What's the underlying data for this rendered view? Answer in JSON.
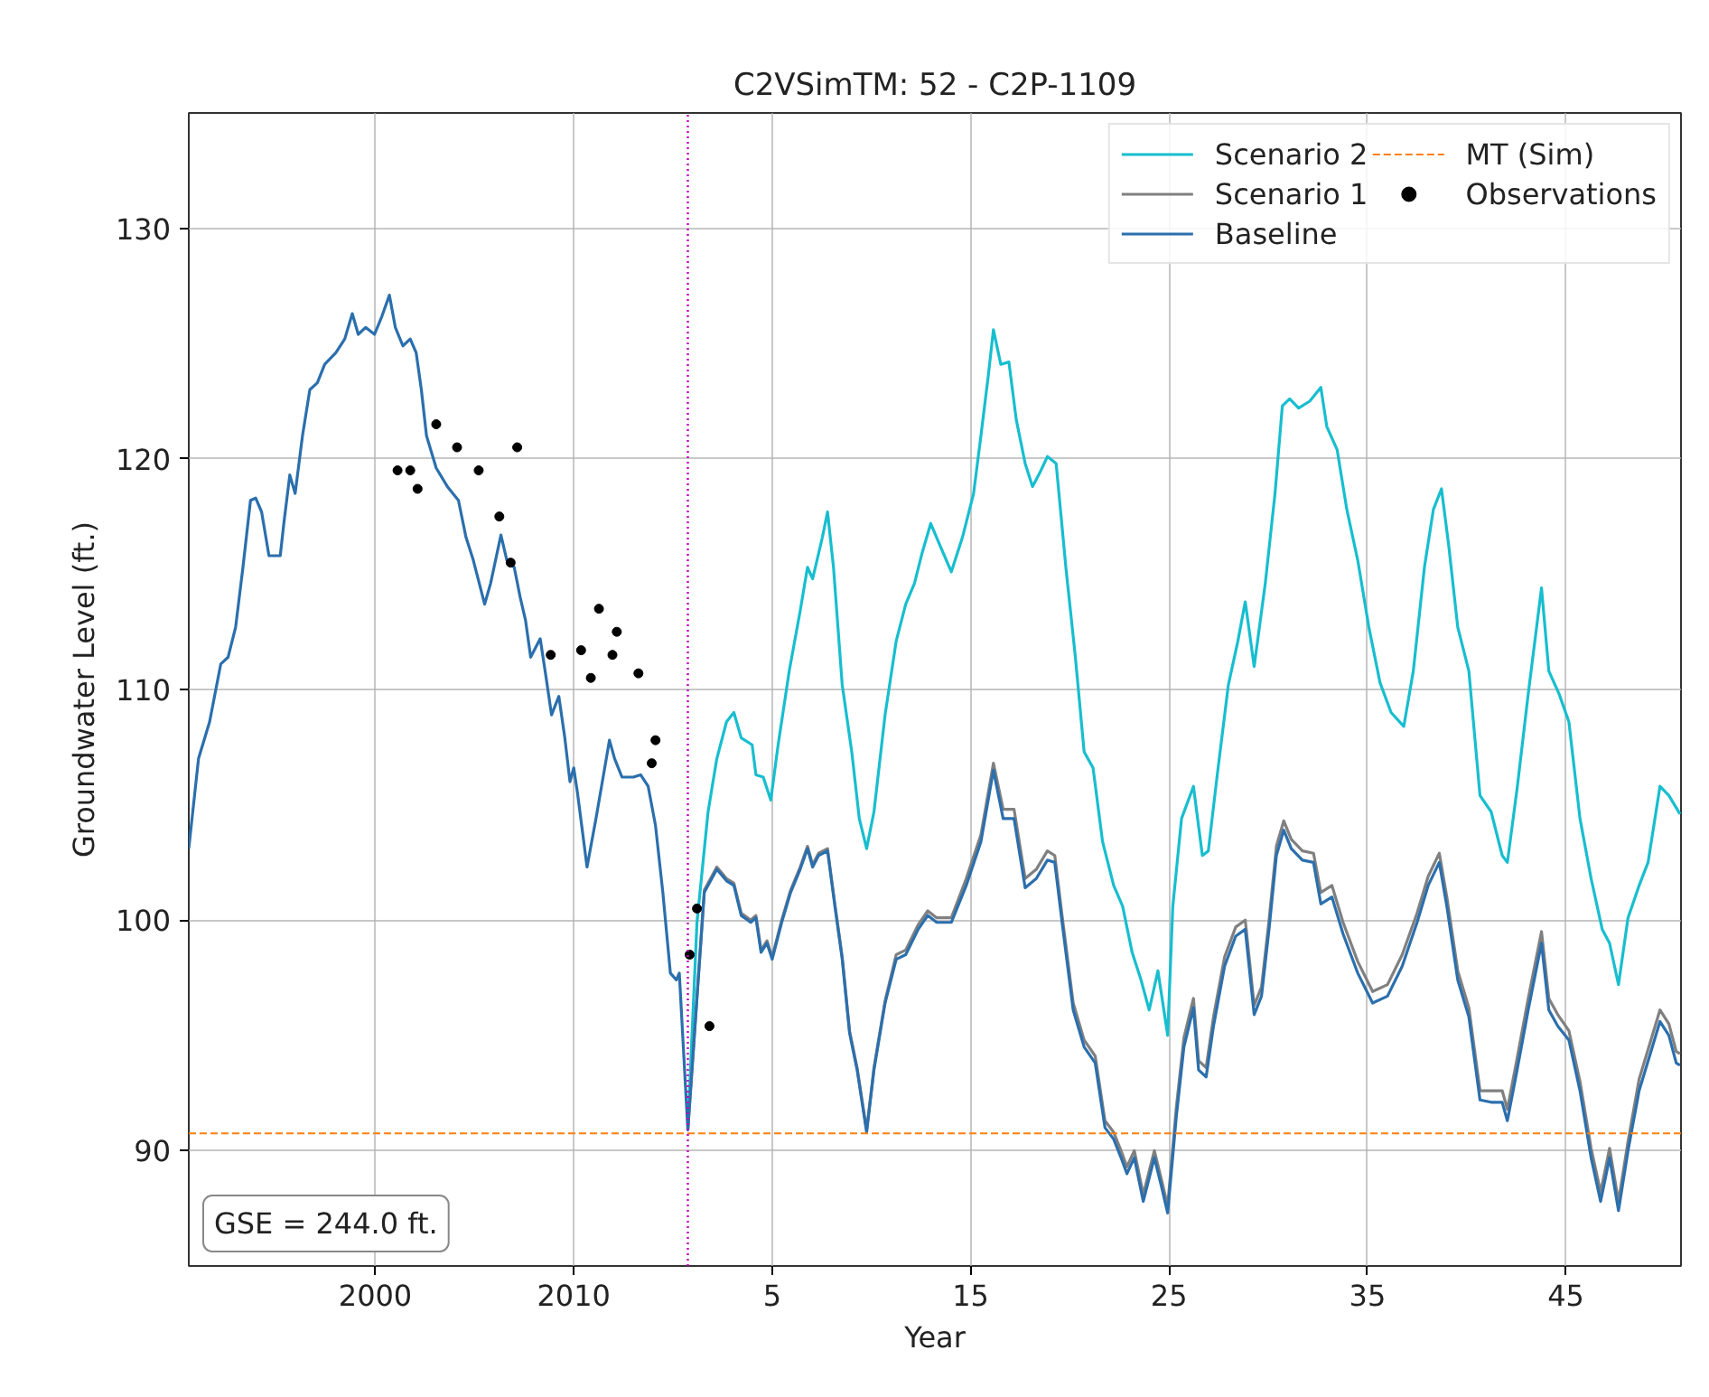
{
  "chart_data": {
    "type": "line",
    "title": "C2VSimTM: 52 - C2P-1109",
    "xlabel": "Year",
    "ylabel": "Groundwater Level (ft.)",
    "annotations": [
      "GSE = 244.0 ft."
    ],
    "xlim": [
      1990.6,
      2065.8
    ],
    "xticks": [
      2000,
      2010
    ],
    "x2lim": [
      -24.4,
      50.8
    ],
    "x2ticks": [
      5,
      15,
      25,
      35,
      45
    ],
    "ylim": [
      85,
      135
    ],
    "yticks": [
      90,
      100,
      110,
      120,
      130
    ],
    "grid": true,
    "legend": "top right",
    "ref_lines": [
      {
        "axis": "y",
        "value": 90.75,
        "label": "MT (Sim)",
        "color": "#ff7f0e",
        "line_style": "dashed"
      },
      {
        "axis": "x",
        "value": 2015.75,
        "color": "#bf00bf",
        "line_style": "dotted"
      }
    ],
    "series": [
      {
        "name": "Scenario 2",
        "color": "#17becf",
        "x": [
          2015.75,
          2016.21,
          2016.77,
          2017.21,
          2017.7,
          2018.07,
          2018.44,
          2018.99,
          2019.18,
          2019.55,
          2019.93,
          2020.3,
          2020.86,
          2021.41,
          2021.78,
          2022.04,
          2022.53,
          2022.79,
          2023.09,
          2023.53,
          2024.01,
          2024.39,
          2024.76,
          2025.13,
          2025.69,
          2026.25,
          2026.73,
          2027.17,
          2027.55,
          2027.99,
          2028.48,
          2029.03,
          2029.59,
          2030.15,
          2030.52,
          2030.89,
          2031.15,
          2031.52,
          2031.93,
          2032.3,
          2032.75,
          2033.12,
          2033.49,
          2033.87,
          2034.31,
          2034.8,
          2035.28,
          2035.72,
          2036.17,
          2036.65,
          2037.21,
          2037.66,
          2038.14,
          2038.59,
          2039.0,
          2039.44,
          2039.93,
          2040.19,
          2040.63,
          2041.23,
          2041.68,
          2041.98,
          2042.43,
          2042.99,
          2043.47,
          2043.84,
          2044.29,
          2044.85,
          2045.34,
          2045.71,
          2046.08,
          2046.53,
          2047.09,
          2047.65,
          2047.95,
          2048.47,
          2048.96,
          2049.51,
          2050.07,
          2050.63,
          2051.19,
          2051.83,
          2052.31,
          2052.87,
          2053.32,
          2053.73,
          2054.1,
          2054.55,
          2055.11,
          2055.67,
          2056.23,
          2056.79,
          2057.05,
          2057.54,
          2058.1,
          2058.77,
          2059.14,
          2059.66,
          2060.15,
          2060.71,
          2061.27,
          2061.83,
          2062.2,
          2062.65,
          2063.13,
          2063.69,
          2064.14,
          2064.74,
          2065.19,
          2065.75
        ],
        "values": [
          90.9,
          99.9,
          104.7,
          107.0,
          108.6,
          109.0,
          107.9,
          107.6,
          106.3,
          106.2,
          105.2,
          107.6,
          110.8,
          113.4,
          115.3,
          114.8,
          116.6,
          117.7,
          115.3,
          110.2,
          107.3,
          104.4,
          103.1,
          104.7,
          108.9,
          112.1,
          113.7,
          114.6,
          115.9,
          117.2,
          116.2,
          115.1,
          116.6,
          118.5,
          121.0,
          123.6,
          125.6,
          124.1,
          124.2,
          121.7,
          119.8,
          118.8,
          119.4,
          120.1,
          119.8,
          115.3,
          111.4,
          107.3,
          106.6,
          103.4,
          101.5,
          100.6,
          98.6,
          97.4,
          96.1,
          97.8,
          95.0,
          100.6,
          104.4,
          105.8,
          102.8,
          103.0,
          106.3,
          110.2,
          112.1,
          113.8,
          111.0,
          114.6,
          118.5,
          122.3,
          122.6,
          122.2,
          122.5,
          123.1,
          121.4,
          120.4,
          117.8,
          115.6,
          112.7,
          110.3,
          109.0,
          108.4,
          110.8,
          115.3,
          117.8,
          118.7,
          116.2,
          112.7,
          110.8,
          105.4,
          104.7,
          102.8,
          102.5,
          105.7,
          109.8,
          114.4,
          110.8,
          109.8,
          108.6,
          104.4,
          101.8,
          99.6,
          99.0,
          97.2,
          100.1,
          101.5,
          102.5,
          105.8,
          105.4,
          104.6
        ]
      },
      {
        "name": "Scenario 1",
        "color": "#808080",
        "x": [
          2015.75,
          2016.58,
          2017.21,
          2017.7,
          2018.07,
          2018.44,
          2018.92,
          2019.18,
          2019.44,
          2019.74,
          2020.0,
          2020.48,
          2020.93,
          2021.41,
          2021.78,
          2022.04,
          2022.34,
          2022.79,
          2023.16,
          2023.53,
          2023.9,
          2024.28,
          2024.76,
          2025.13,
          2025.69,
          2026.25,
          2026.73,
          2027.36,
          2027.84,
          2028.29,
          2029.03,
          2029.78,
          2030.52,
          2031.15,
          2031.64,
          2032.19,
          2032.75,
          2033.31,
          2033.87,
          2034.24,
          2034.61,
          2035.17,
          2035.72,
          2036.28,
          2036.77,
          2037.21,
          2037.58,
          2037.88,
          2038.25,
          2038.7,
          2039.26,
          2039.63,
          2039.93,
          2040.37,
          2040.75,
          2041.23,
          2041.49,
          2041.87,
          2042.24,
          2042.8,
          2043.36,
          2043.84,
          2044.29,
          2044.66,
          2045.04,
          2045.41,
          2045.78,
          2046.16,
          2046.72,
          2047.28,
          2047.65,
          2048.21,
          2048.77,
          2049.51,
          2050.26,
          2051.01,
          2051.75,
          2052.5,
          2053.06,
          2053.62,
          2054.0,
          2054.55,
          2055.11,
          2055.67,
          2056.23,
          2056.79,
          2057.05,
          2057.54,
          2058.1,
          2058.77,
          2059.14,
          2059.59,
          2060.15,
          2060.71,
          2061.27,
          2061.75,
          2062.2,
          2062.65,
          2063.13,
          2063.69,
          2064.25,
          2064.74,
          2065.19,
          2065.56,
          2065.75
        ],
        "values": [
          90.9,
          101.3,
          102.3,
          101.8,
          101.6,
          100.3,
          100.0,
          100.2,
          98.7,
          99.1,
          98.4,
          100.0,
          101.3,
          102.3,
          103.2,
          102.4,
          102.9,
          103.1,
          100.7,
          98.4,
          95.2,
          93.6,
          90.9,
          93.6,
          96.5,
          98.5,
          98.7,
          99.8,
          100.4,
          100.1,
          100.1,
          101.8,
          103.7,
          106.8,
          104.8,
          104.8,
          101.8,
          102.2,
          103.0,
          102.8,
          100.2,
          96.4,
          94.8,
          94.1,
          91.3,
          90.8,
          90.0,
          89.3,
          90.0,
          88.1,
          90.0,
          88.7,
          87.6,
          91.9,
          94.9,
          96.6,
          93.9,
          93.6,
          95.8,
          98.4,
          99.7,
          100.0,
          96.3,
          97.1,
          100.0,
          103.2,
          104.3,
          103.5,
          103.0,
          102.9,
          101.2,
          101.5,
          99.9,
          98.2,
          96.9,
          97.2,
          98.5,
          100.3,
          101.9,
          102.9,
          101.0,
          97.8,
          96.2,
          92.6,
          92.6,
          92.6,
          91.8,
          94.0,
          96.6,
          99.5,
          96.6,
          95.9,
          95.2,
          93.0,
          90.1,
          88.2,
          90.1,
          87.8,
          90.4,
          93.1,
          94.7,
          96.1,
          95.5,
          94.3,
          94.2
        ]
      },
      {
        "name": "Baseline",
        "color": "#2b6fad",
        "x": [
          1990.6,
          1991.09,
          1991.65,
          1992.21,
          1992.58,
          1992.96,
          1993.33,
          1993.71,
          1993.97,
          1994.27,
          1994.64,
          1995.21,
          1995.39,
          1995.69,
          1995.96,
          1996.33,
          1996.7,
          1997.08,
          1997.45,
          1998.01,
          1998.46,
          1998.84,
          1999.14,
          1999.51,
          1999.96,
          2000.34,
          2000.71,
          2001.01,
          2001.39,
          2001.76,
          2002.06,
          2002.32,
          2002.58,
          2003.07,
          2003.63,
          2004.19,
          2004.57,
          2004.94,
          2005.51,
          2005.81,
          2006.33,
          2006.63,
          2007.0,
          2007.3,
          2007.57,
          2007.83,
          2008.31,
          2008.61,
          2008.88,
          2009.25,
          2009.55,
          2009.81,
          2010.0,
          2010.19,
          2010.67,
          2011.12,
          2011.5,
          2011.8,
          2012.06,
          2012.43,
          2013.0,
          2013.37,
          2013.75,
          2014.12,
          2014.49,
          2014.87,
          2015.17,
          2015.32,
          2015.75,
          2016.58,
          2017.21,
          2017.7,
          2018.07,
          2018.44,
          2018.92,
          2019.18,
          2019.44,
          2019.74,
          2020.0,
          2020.48,
          2020.93,
          2021.41,
          2021.78,
          2022.04,
          2022.34,
          2022.79,
          2023.16,
          2023.53,
          2023.9,
          2024.28,
          2024.76,
          2025.13,
          2025.69,
          2026.25,
          2026.73,
          2027.36,
          2027.84,
          2028.29,
          2029.03,
          2029.78,
          2030.52,
          2031.15,
          2031.64,
          2032.19,
          2032.75,
          2033.31,
          2033.87,
          2034.24,
          2034.61,
          2035.17,
          2035.72,
          2036.28,
          2036.77,
          2037.21,
          2037.58,
          2037.88,
          2038.25,
          2038.7,
          2039.26,
          2039.63,
          2039.93,
          2040.37,
          2040.75,
          2041.23,
          2041.49,
          2041.87,
          2042.24,
          2042.8,
          2043.36,
          2043.84,
          2044.29,
          2044.66,
          2045.04,
          2045.41,
          2045.78,
          2046.16,
          2046.72,
          2047.28,
          2047.65,
          2048.21,
          2048.77,
          2049.51,
          2050.26,
          2051.01,
          2051.75,
          2052.5,
          2053.06,
          2053.62,
          2054.0,
          2054.55,
          2055.11,
          2055.67,
          2056.23,
          2056.79,
          2057.05,
          2057.54,
          2058.1,
          2058.77,
          2059.14,
          2059.59,
          2060.15,
          2060.71,
          2061.27,
          2061.75,
          2062.2,
          2062.65,
          2063.13,
          2063.69,
          2064.25,
          2064.74,
          2065.19,
          2065.56,
          2065.75
        ],
        "values": [
          103.1,
          107.0,
          108.6,
          111.1,
          111.4,
          112.7,
          115.3,
          118.2,
          118.3,
          117.7,
          115.8,
          115.8,
          117.2,
          119.3,
          118.5,
          121.0,
          123.0,
          123.3,
          124.1,
          124.6,
          125.2,
          126.3,
          125.4,
          125.7,
          125.4,
          126.2,
          127.1,
          125.7,
          124.9,
          125.2,
          124.6,
          123.0,
          121.0,
          119.6,
          118.8,
          118.2,
          116.6,
          115.6,
          113.7,
          114.6,
          116.7,
          115.6,
          115.3,
          114.0,
          113.0,
          111.4,
          112.2,
          110.5,
          108.9,
          109.7,
          107.9,
          106.0,
          106.6,
          105.5,
          102.3,
          104.4,
          106.3,
          107.8,
          107.0,
          106.2,
          106.2,
          106.3,
          105.8,
          104.1,
          101.2,
          97.7,
          97.4,
          97.7,
          90.9,
          101.2,
          102.2,
          101.7,
          101.5,
          100.2,
          99.9,
          100.1,
          98.6,
          99.0,
          98.3,
          99.9,
          101.2,
          102.2,
          103.1,
          102.3,
          102.8,
          103.0,
          100.6,
          98.3,
          95.1,
          93.5,
          90.8,
          93.5,
          96.4,
          98.3,
          98.5,
          99.6,
          100.2,
          99.9,
          99.9,
          101.5,
          103.4,
          106.5,
          104.4,
          104.4,
          101.4,
          101.8,
          102.6,
          102.5,
          99.9,
          96.1,
          94.5,
          93.8,
          91.0,
          90.5,
          89.7,
          89.0,
          89.7,
          87.8,
          89.7,
          88.4,
          87.3,
          91.5,
          94.5,
          96.2,
          93.5,
          93.2,
          95.4,
          98.0,
          99.3,
          99.6,
          95.9,
          96.7,
          99.6,
          102.8,
          103.9,
          103.1,
          102.6,
          102.5,
          100.7,
          101.0,
          99.4,
          97.7,
          96.4,
          96.7,
          98.0,
          99.9,
          101.5,
          102.5,
          100.6,
          97.4,
          95.8,
          92.2,
          92.1,
          92.1,
          91.3,
          93.5,
          96.1,
          99.0,
          96.1,
          95.4,
          94.8,
          92.6,
          89.7,
          87.8,
          89.7,
          87.4,
          90.0,
          92.6,
          94.2,
          95.6,
          95.0,
          93.8,
          93.7
        ]
      },
      {
        "name": "Observations",
        "type": "scatter",
        "color": "#000000",
        "marker": "circle",
        "x": [
          2001.12,
          2001.76,
          2002.13,
          2003.07,
          2004.12,
          2005.21,
          2006.25,
          2006.82,
          2007.15,
          2008.84,
          2010.37,
          2010.86,
          2011.27,
          2011.95,
          2012.17,
          2013.26,
          2013.93,
          2014.12,
          2015.84,
          2016.21,
          2016.84
        ],
        "values": [
          119.5,
          119.5,
          118.7,
          121.5,
          120.5,
          119.5,
          117.5,
          115.5,
          120.5,
          111.5,
          111.7,
          110.5,
          113.5,
          111.5,
          112.5,
          110.7,
          106.8,
          107.8,
          98.5,
          100.5,
          95.4
        ]
      }
    ]
  }
}
